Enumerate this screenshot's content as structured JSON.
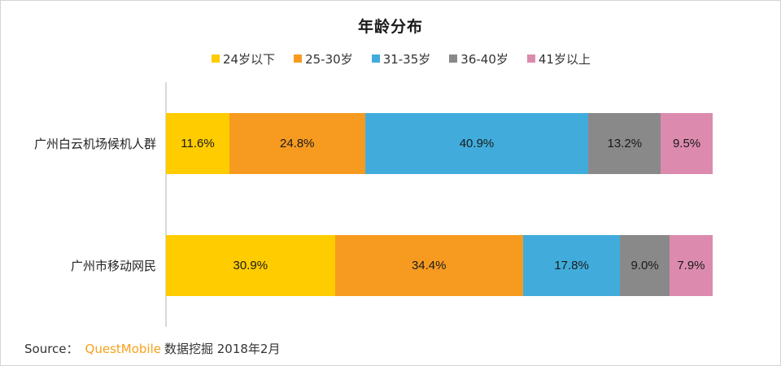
{
  "chart_data": {
    "type": "bar",
    "orientation": "horizontal",
    "stacked": true,
    "normalized": true,
    "title": "年龄分布",
    "xlabel": "",
    "ylabel": "",
    "legend_position": "top",
    "grid": false,
    "categories": [
      "广州白云机场候机人群",
      "广州市移动网民"
    ],
    "series": [
      {
        "name": "24岁以下",
        "color": "#ffcc00",
        "values": [
          11.6,
          30.9
        ],
        "labels": [
          "11.6%",
          "30.9%"
        ]
      },
      {
        "name": "25-30岁",
        "color": "#f79b20",
        "values": [
          24.8,
          34.4
        ],
        "labels": [
          "24.8%",
          "34.4%"
        ]
      },
      {
        "name": "31-35岁",
        "color": "#41acdc",
        "values": [
          40.9,
          17.8
        ],
        "labels": [
          "40.9%",
          "17.8%"
        ]
      },
      {
        "name": "36-40岁",
        "color": "#898989",
        "values": [
          13.2,
          9.0
        ],
        "labels": [
          "13.2%",
          "9.0%"
        ]
      },
      {
        "name": "41岁以上",
        "color": "#dc8baf",
        "values": [
          9.5,
          7.9
        ],
        "labels": [
          "9.5%",
          "7.9%"
        ]
      }
    ]
  },
  "title": "年龄分布",
  "legend": [
    {
      "label": "24岁以下",
      "color": "#ffcc00"
    },
    {
      "label": "25-30岁",
      "color": "#f79b20"
    },
    {
      "label": "31-35岁",
      "color": "#41acdc"
    },
    {
      "label": "36-40岁",
      "color": "#898989"
    },
    {
      "label": "41岁以上",
      "color": "#dc8baf"
    }
  ],
  "rows": [
    {
      "label": "广州白云机场候机人群",
      "segments": [
        "11.6%",
        "24.8%",
        "40.9%",
        "13.2%",
        "9.5%"
      ]
    },
    {
      "label": "广州市移动网民",
      "segments": [
        "30.9%",
        "34.4%",
        "17.8%",
        "9.0%",
        "7.9%"
      ]
    }
  ],
  "source": {
    "prefix": "Source：",
    "brand": "QuestMobile",
    "suffix": "数据挖掘 2018年2月",
    "brand_color": "#f7a11a"
  }
}
